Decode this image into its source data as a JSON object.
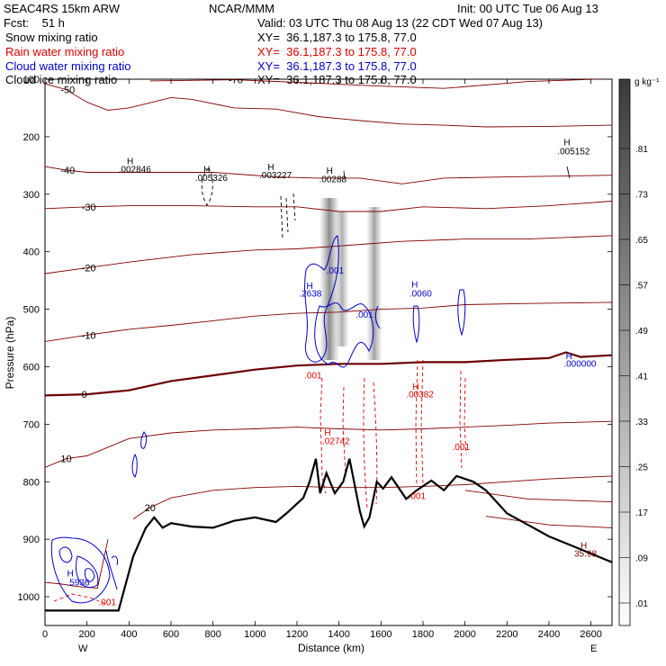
{
  "header": {
    "model": "SEAC4RS 15km ARW",
    "fcst": "Fcst:    51 h",
    "center": "NCAR/MMM",
    "init": "Init: 00 UTC Tue 06 Aug 13",
    "valid": "Valid: 03 UTC Thu 08 Aug 13 (22 CDT Wed 07 Aug 13)",
    "xy_text": "XY=  36.1,187.3 to 175.8, 77.0"
  },
  "colors": {
    "temp": "#800000",
    "zero": "#6a0000",
    "snow": "#000000",
    "rain": "#dd0000",
    "cloud": "#0000cc",
    "ice": "#000000",
    "terrain": "#000000"
  },
  "chart_data": {
    "type": "line",
    "xlabel": "Distance (km)",
    "ylabel": "Pressure (hPa)",
    "xlim": [
      0,
      2700
    ],
    "ylim": [
      1050,
      100
    ],
    "x_ticks": [
      0,
      200,
      400,
      600,
      800,
      1000,
      1200,
      1400,
      1600,
      1800,
      2000,
      2200,
      2400,
      2600
    ],
    "y_ticks": [
      100,
      200,
      300,
      400,
      500,
      600,
      700,
      800,
      900,
      1000
    ],
    "endpoints": {
      "left": "W",
      "right": "E"
    },
    "legend": [
      {
        "name": "Snow mixing ratio",
        "color": "#000000"
      },
      {
        "name": "Rain water mixing ratio",
        "color": "#dd0000"
      },
      {
        "name": "Cloud water mixing ratio",
        "color": "#0000cc"
      },
      {
        "name": "Cloud ice mixing ratio",
        "color": "#000000"
      }
    ],
    "colorbar": {
      "unit": "g kg⁻¹",
      "labels": [
        ".81",
        ".73",
        ".65",
        ".57",
        ".49",
        ".41",
        ".33",
        ".25",
        ".17",
        ".09",
        ".01"
      ]
    },
    "temperature_contours": [
      {
        "label": "-70",
        "points": [
          [
            500,
            103
          ],
          [
            900,
            101
          ],
          [
            1300,
            107
          ],
          [
            1600,
            112
          ],
          [
            1900,
            116
          ],
          [
            2300,
            104
          ],
          [
            2700,
            99
          ]
        ]
      },
      {
        "label": "-50",
        "points": [
          [
            0,
            108
          ],
          [
            100,
            118
          ],
          [
            200,
            140
          ],
          [
            300,
            154
          ],
          [
            400,
            150
          ],
          [
            600,
            132
          ],
          [
            700,
            135
          ],
          [
            900,
            150
          ],
          [
            1100,
            152
          ],
          [
            1300,
            165
          ],
          [
            1500,
            172
          ],
          [
            1700,
            178
          ],
          [
            1900,
            180
          ],
          [
            2100,
            183
          ],
          [
            2400,
            182
          ],
          [
            2700,
            180
          ]
        ]
      },
      {
        "label": "-40",
        "points": [
          [
            0,
            252
          ],
          [
            100,
            258
          ],
          [
            200,
            262
          ],
          [
            300,
            262
          ],
          [
            500,
            262
          ],
          [
            800,
            262
          ],
          [
            1100,
            270
          ],
          [
            1300,
            272
          ],
          [
            1500,
            272
          ],
          [
            1700,
            282
          ],
          [
            1900,
            272
          ],
          [
            2200,
            270
          ],
          [
            2700,
            267
          ]
        ]
      },
      {
        "label": "-30",
        "points": [
          [
            0,
            325
          ],
          [
            200,
            322
          ],
          [
            400,
            320
          ],
          [
            700,
            320
          ],
          [
            1000,
            322
          ],
          [
            1200,
            322
          ],
          [
            1400,
            330
          ],
          [
            1600,
            330
          ],
          [
            1800,
            322
          ],
          [
            2100,
            325
          ],
          [
            2400,
            320
          ],
          [
            2700,
            312
          ]
        ]
      },
      {
        "label": "-20",
        "points": [
          [
            0,
            438
          ],
          [
            200,
            428
          ],
          [
            400,
            418
          ],
          [
            700,
            405
          ],
          [
            1000,
            397
          ],
          [
            1200,
            395
          ],
          [
            1400,
            390
          ],
          [
            1700,
            382
          ],
          [
            2000,
            378
          ],
          [
            2300,
            378
          ],
          [
            2700,
            372
          ]
        ]
      },
      {
        "label": "-10",
        "points": [
          [
            0,
            556
          ],
          [
            200,
            545
          ],
          [
            400,
            535
          ],
          [
            600,
            528
          ],
          [
            800,
            520
          ],
          [
            1000,
            512
          ],
          [
            1200,
            507
          ],
          [
            1400,
            505
          ],
          [
            1600,
            500
          ],
          [
            1800,
            498
          ],
          [
            2000,
            492
          ],
          [
            2300,
            490
          ],
          [
            2700,
            488
          ]
        ]
      },
      {
        "label": "0",
        "bold": true,
        "points": [
          [
            0,
            650
          ],
          [
            200,
            648
          ],
          [
            400,
            641
          ],
          [
            600,
            625
          ],
          [
            800,
            615
          ],
          [
            1000,
            605
          ],
          [
            1200,
            598
          ],
          [
            1400,
            595
          ],
          [
            1600,
            595
          ],
          [
            1800,
            592
          ],
          [
            2000,
            592
          ],
          [
            2200,
            588
          ],
          [
            2400,
            585
          ],
          [
            2480,
            575
          ],
          [
            2550,
            583
          ],
          [
            2700,
            580
          ]
        ]
      },
      {
        "label": "10",
        "points": [
          [
            0,
            775
          ],
          [
            100,
            760
          ],
          [
            200,
            755
          ],
          [
            300,
            740
          ],
          [
            400,
            725
          ],
          [
            600,
            715
          ],
          [
            800,
            710
          ],
          [
            1000,
            708
          ],
          [
            1200,
            705
          ],
          [
            1400,
            708
          ],
          [
            1600,
            710
          ],
          [
            1800,
            708
          ],
          [
            2000,
            705
          ],
          [
            2200,
            702
          ],
          [
            2400,
            698
          ],
          [
            2700,
            695
          ]
        ]
      },
      {
        "label": "20",
        "points": [
          [
            420,
            865
          ],
          [
            500,
            845
          ],
          [
            600,
            828
          ],
          [
            800,
            815
          ],
          [
            1000,
            810
          ],
          [
            1200,
            808
          ],
          [
            1400,
            810
          ],
          [
            1600,
            810
          ],
          [
            1800,
            808
          ],
          [
            2000,
            805
          ],
          [
            2200,
            800
          ],
          [
            2400,
            795
          ],
          [
            2700,
            790
          ]
        ]
      },
      {
        "label": "",
        "points": [
          [
            0,
            975
          ],
          [
            80,
            978
          ],
          [
            150,
            982
          ],
          [
            250,
            985
          ],
          [
            300,
            900
          ]
        ]
      },
      {
        "label": "",
        "points": [
          [
            2000,
            815
          ],
          [
            2300,
            830
          ],
          [
            2700,
            835
          ]
        ]
      },
      {
        "label": "",
        "points": [
          [
            2100,
            860
          ],
          [
            2400,
            875
          ],
          [
            2700,
            880
          ]
        ]
      }
    ],
    "terrain": [
      [
        0,
        1024
      ],
      [
        350,
        1024
      ],
      [
        420,
        930
      ],
      [
        480,
        880
      ],
      [
        520,
        862
      ],
      [
        560,
        880
      ],
      [
        600,
        872
      ],
      [
        700,
        878
      ],
      [
        800,
        880
      ],
      [
        900,
        868
      ],
      [
        1000,
        862
      ],
      [
        1100,
        870
      ],
      [
        1150,
        855
      ],
      [
        1230,
        828
      ],
      [
        1260,
        800
      ],
      [
        1290,
        760
      ],
      [
        1310,
        820
      ],
      [
        1340,
        785
      ],
      [
        1380,
        820
      ],
      [
        1420,
        800
      ],
      [
        1450,
        760
      ],
      [
        1500,
        852
      ],
      [
        1520,
        878
      ],
      [
        1545,
        862
      ],
      [
        1580,
        800
      ],
      [
        1610,
        812
      ],
      [
        1650,
        792
      ],
      [
        1720,
        830
      ],
      [
        1770,
        815
      ],
      [
        1840,
        798
      ],
      [
        1900,
        815
      ],
      [
        1960,
        790
      ],
      [
        2040,
        800
      ],
      [
        2100,
        815
      ],
      [
        2200,
        855
      ],
      [
        2300,
        875
      ],
      [
        2400,
        895
      ],
      [
        2500,
        910
      ],
      [
        2600,
        925
      ],
      [
        2700,
        940
      ]
    ],
    "annotations": [
      {
        "text": "H",
        "x": 390,
        "y": 248,
        "color": "#000000"
      },
      {
        "text": ".002846",
        "x": 350,
        "y": 262,
        "color": "#000000"
      },
      {
        "text": "H",
        "x": 755,
        "y": 262,
        "color": "#000000"
      },
      {
        "text": ".005326",
        "x": 715,
        "y": 277,
        "color": "#000000"
      },
      {
        "text": "H",
        "x": 1060,
        "y": 258,
        "color": "#000000"
      },
      {
        "text": ".003227",
        "x": 1020,
        "y": 272,
        "color": "#000000"
      },
      {
        "text": "H",
        "x": 1340,
        "y": 264,
        "color": "#000000"
      },
      {
        "text": ".00288",
        "x": 1305,
        "y": 279,
        "color": "#000000"
      },
      {
        "text": "H",
        "x": 2470,
        "y": 215,
        "color": "#000000"
      },
      {
        "text": ".005152",
        "x": 2440,
        "y": 231,
        "color": "#000000"
      },
      {
        "text": "H",
        "x": 1245,
        "y": 465,
        "color": "#0000cc"
      },
      {
        "text": ".2638",
        "x": 1210,
        "y": 478,
        "color": "#0000cc"
      },
      {
        "text": ".001",
        "x": 1340,
        "y": 438,
        "color": "#0000cc"
      },
      {
        "text": ".001",
        "x": 1480,
        "y": 515,
        "color": "#0000cc"
      },
      {
        "text": "H",
        "x": 1745,
        "y": 462,
        "color": "#0000cc"
      },
      {
        "text": ".0060",
        "x": 1735,
        "y": 478,
        "color": "#0000cc"
      },
      {
        "text": "H",
        "x": 105,
        "y": 965,
        "color": "#0000cc"
      },
      {
        "text": ".5936",
        "x": 105,
        "y": 980,
        "color": "#0000cc"
      },
      {
        "text": ".001",
        "x": 1235,
        "y": 620,
        "color": "#dd0000"
      },
      {
        "text": "H",
        "x": 1750,
        "y": 640,
        "color": "#dd0000"
      },
      {
        "text": ".00382",
        "x": 1720,
        "y": 653,
        "color": "#dd0000"
      },
      {
        "text": "H",
        "x": 1330,
        "y": 720,
        "color": "#dd0000"
      },
      {
        "text": ".02742",
        "x": 1320,
        "y": 735,
        "color": "#dd0000"
      },
      {
        "text": ".001",
        "x": 1940,
        "y": 745,
        "color": "#dd0000"
      },
      {
        "text": ".001",
        "x": 1730,
        "y": 830,
        "color": "#dd0000"
      },
      {
        "text": "H",
        "x": 2480,
        "y": 587,
        "color": "#0000cc"
      },
      {
        "text": ".000000",
        "x": 2470,
        "y": 600,
        "color": "#0000cc"
      },
      {
        "text": ".001",
        "x": 255,
        "y": 1015,
        "color": "#dd0000"
      },
      {
        "text": "H",
        "x": 2550,
        "y": 916,
        "color": "#800000"
      },
      {
        "text": "35.98",
        "x": 2520,
        "y": 930,
        "color": "#800000"
      }
    ]
  }
}
